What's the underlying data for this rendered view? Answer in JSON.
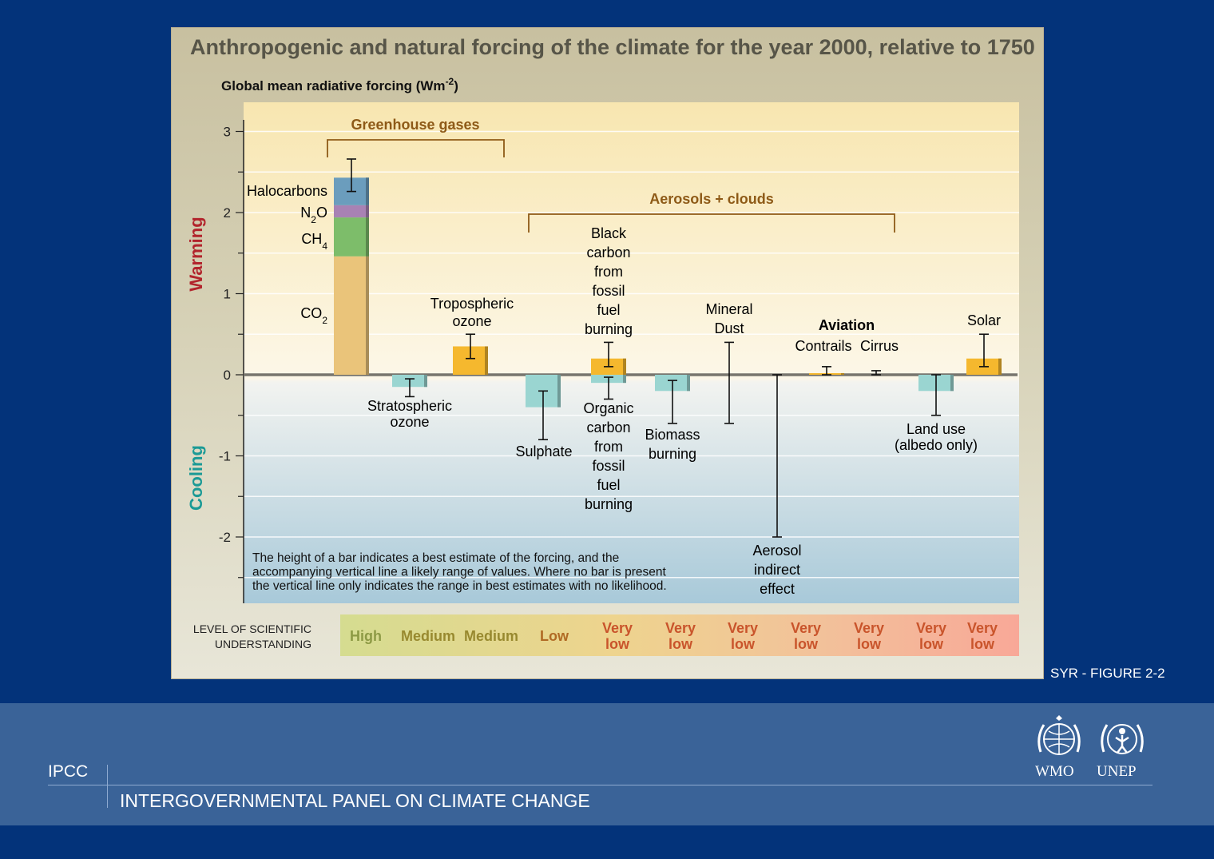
{
  "chart_data": {
    "type": "bar",
    "title": "Anthropogenic and natural forcing of the climate for the year 2000, relative to 1750",
    "ylabel": "Global mean radiative forcing (Wm-2)",
    "ylabel_parts": {
      "main": "Global mean radiative forcing (Wm",
      "sup": "-2",
      "end": ")"
    },
    "ylim": [
      -2.8,
      3.4
    ],
    "yticks": [
      "3",
      "2",
      "1",
      "0",
      "-1",
      "-2"
    ],
    "warming_label": "Warming",
    "cooling_label": "Cooling",
    "groups": [
      {
        "label": "Greenhouse gases"
      },
      {
        "label": "Aerosols + clouds"
      }
    ],
    "stack": {
      "name": "Greenhouse gases",
      "components": [
        {
          "name": "CO",
          "sub": "2",
          "value": 1.46,
          "color": "#eac47a"
        },
        {
          "name": "CH",
          "sub": "4",
          "value": 0.48,
          "color": "#7dbd6a"
        },
        {
          "name": "N",
          "sub": "2",
          "suffix": "O",
          "value": 0.15,
          "color": "#a882b4"
        },
        {
          "name": "Halocarbons",
          "value": 0.34,
          "color": "#6b9dbd"
        }
      ],
      "range": [
        2.26,
        2.66
      ]
    },
    "bars": [
      {
        "name": "Stratospheric ozone",
        "lines": [
          "Stratospheric",
          "ozone"
        ],
        "value": -0.15,
        "range": [
          -0.27,
          -0.05
        ],
        "color": "#9ad5d1"
      },
      {
        "name": "Tropospheric ozone",
        "lines": [
          "Tropospheric",
          "ozone"
        ],
        "value": 0.35,
        "range": [
          0.2,
          0.5
        ],
        "color": "#f5b82e"
      },
      {
        "name": "Sulphate",
        "lines": [
          "Sulphate"
        ],
        "value": -0.4,
        "range": [
          -0.8,
          -0.2
        ],
        "color": "#9ad5d1"
      },
      {
        "name": "Black carbon from fossil fuel burning",
        "lines": [
          "Black",
          "carbon",
          "from",
          "fossil",
          "fuel",
          "burning"
        ],
        "value": 0.2,
        "range": [
          0.1,
          0.4
        ],
        "color": "#f5b82e"
      },
      {
        "name": "Organic carbon from fossil fuel burning",
        "lines": [
          "Organic",
          "carbon",
          "from",
          "fossil",
          "fuel",
          "burning"
        ],
        "value": -0.1,
        "range": [
          -0.3,
          -0.03
        ],
        "color": "#9ad5d1"
      },
      {
        "name": "Biomass burning",
        "lines": [
          "Biomass",
          "burning"
        ],
        "value": -0.2,
        "range": [
          -0.6,
          -0.07
        ],
        "color": "#9ad5d1"
      },
      {
        "name": "Mineral Dust",
        "lines": [
          "Mineral",
          "Dust"
        ],
        "value": null,
        "range": [
          -0.6,
          0.4
        ],
        "color": ""
      },
      {
        "name": "Aerosol indirect effect",
        "lines": [
          "Aerosol",
          "indirect",
          "effect"
        ],
        "value": null,
        "range": [
          -2.0,
          0.0
        ],
        "color": ""
      },
      {
        "name": "Contrails",
        "lines": [
          "Contrails"
        ],
        "value": 0.02,
        "range": [
          0.0,
          0.1
        ],
        "color": "#f5b82e"
      },
      {
        "name": "Cirrus",
        "lines": [
          "Cirrus"
        ],
        "value": null,
        "range": [
          0.0,
          0.05
        ],
        "color": ""
      },
      {
        "name": "Land use (albedo only)",
        "lines": [
          "Land use",
          "(albedo only)"
        ],
        "value": -0.2,
        "range": [
          -0.5,
          0.0
        ],
        "color": "#9ad5d1"
      },
      {
        "name": "Solar",
        "lines": [
          "Solar"
        ],
        "value": 0.2,
        "range": [
          0.1,
          0.5
        ],
        "color": "#f5b82e"
      }
    ],
    "aviation_label": "Aviation",
    "note": [
      "The height of a bar indicates a best estimate of the forcing, and the",
      "accompanying vertical line a likely range of values.  Where no bar is present",
      "the vertical line only indicates the range in best estimates with no likelihood."
    ],
    "loso_title": [
      "LEVEL OF SCIENTIFIC",
      "UNDERSTANDING"
    ],
    "loso": [
      {
        "lines": [
          "High"
        ],
        "color": "#8d9a45"
      },
      {
        "lines": [
          "Medium"
        ],
        "color": "#98892f"
      },
      {
        "lines": [
          "Medium"
        ],
        "color": "#98892f"
      },
      {
        "lines": [
          "Low"
        ],
        "color": "#b06a24"
      },
      {
        "lines": [
          "Very",
          "low"
        ],
        "color": "#c9542b"
      },
      {
        "lines": [
          "Very",
          "low"
        ],
        "color": "#c9542b"
      },
      {
        "lines": [
          "Very",
          "low"
        ],
        "color": "#c9542b"
      },
      {
        "lines": [
          "Very",
          "low"
        ],
        "color": "#c9542b"
      },
      {
        "lines": [
          "Very",
          "low"
        ],
        "color": "#c9542b"
      },
      {
        "lines": [
          "Very",
          "low"
        ],
        "color": "#c9542b"
      },
      {
        "lines": [
          "Very",
          "low"
        ],
        "color": "#c9542b"
      }
    ],
    "grid": true,
    "colors": {
      "warming": "#b2242c",
      "cooling": "#1b9a96",
      "group_bracket": "#8e5a17"
    }
  },
  "figure_label": "SYR - FIGURE 2-2",
  "footer": {
    "abbr": "IPCC",
    "full_name": "INTERGOVERNMENTAL PANEL ON CLIMATE CHANGE",
    "logos": [
      {
        "name": "WMO",
        "icon": "wmo-emblem-icon"
      },
      {
        "name": "UNEP",
        "icon": "unep-emblem-icon"
      }
    ]
  }
}
